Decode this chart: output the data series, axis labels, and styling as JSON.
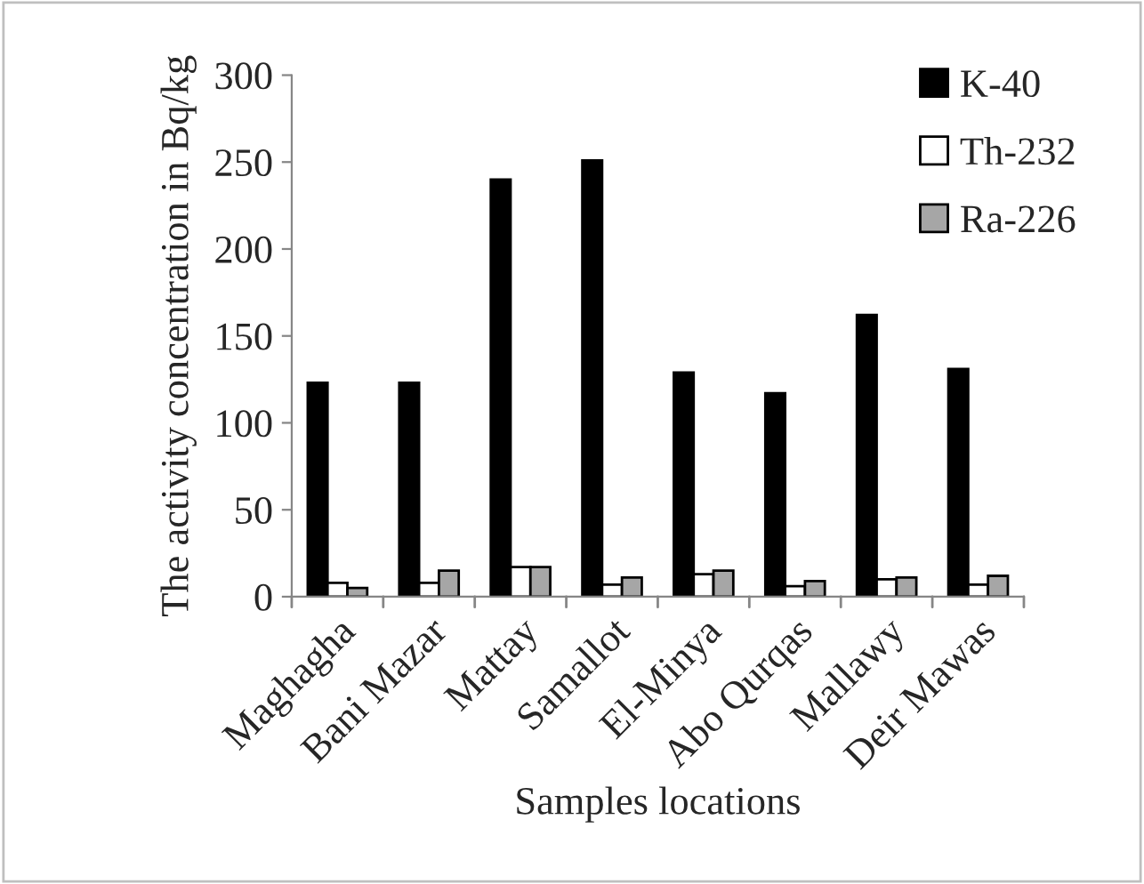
{
  "chart_data": {
    "type": "bar",
    "xlabel": "Samples locations",
    "ylabel": "The activity concentration in Bq/kg",
    "categories": [
      "Maghagha",
      "Bani Mazar",
      "Mattay",
      "Samallot",
      "El-Minya",
      "Abo Qurqas",
      "Mallawy",
      "Deir Mawas"
    ],
    "series": [
      {
        "name": "K-40",
        "color": "#000000",
        "values": [
          123,
          123,
          240,
          251,
          129,
          117,
          162,
          131
        ]
      },
      {
        "name": "Th-232",
        "color": "#ffffff",
        "values": [
          8,
          8,
          17,
          7,
          13,
          6,
          10,
          7
        ]
      },
      {
        "name": "Ra-226",
        "color": "#a6a6a6",
        "values": [
          5,
          15,
          17,
          11,
          15,
          9,
          11,
          12
        ]
      }
    ],
    "ylim": [
      0,
      300
    ],
    "yticks": [
      0,
      50,
      100,
      150,
      200,
      250,
      300
    ],
    "grid": false,
    "legend": "top right"
  }
}
